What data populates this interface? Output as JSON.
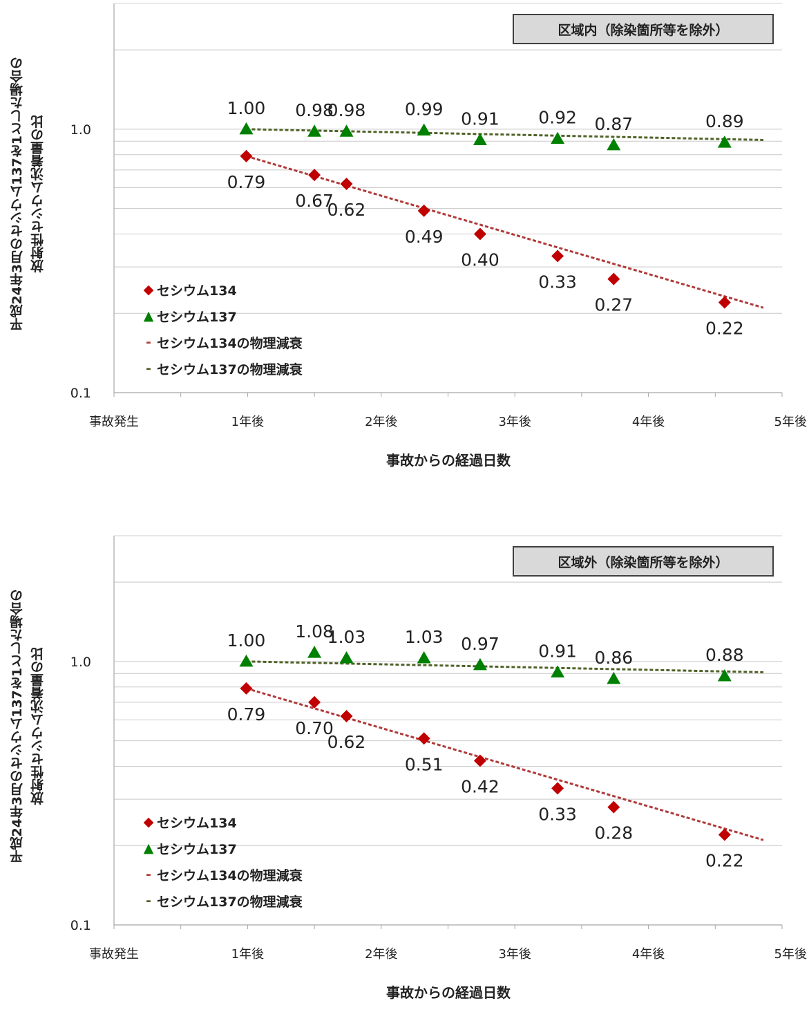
{
  "chart_data": [
    {
      "type": "scatter",
      "title": "区域内（除染箇所等を除外）",
      "xlabel": "事故からの経過日数",
      "ylabel_lines": [
        "平成24年3月のセシウム137を1とした場合の",
        "放射性セシウム沈着量の比"
      ],
      "x_tick_labels": [
        "事故発生",
        "1年後",
        "2年後",
        "3年後",
        "4年後",
        "5年後"
      ],
      "x_ticks": [
        0,
        1,
        2,
        3,
        4,
        5
      ],
      "xlim": [
        0,
        5
      ],
      "y_scale": "log",
      "ylim": [
        0.1,
        3.0
      ],
      "y_tick_labels": [
        "0.1",
        "1.0"
      ],
      "grid": true,
      "legend_placement": "lower-left",
      "series": [
        {
          "name": "セシウム134",
          "marker": "diamond",
          "color": "#c00000",
          "x": [
            0.99,
            1.5,
            1.74,
            2.32,
            2.74,
            3.32,
            3.74,
            4.57
          ],
          "values": [
            0.79,
            0.67,
            0.62,
            0.49,
            0.4,
            0.33,
            0.27,
            0.22
          ],
          "labels": [
            "0.79",
            "0.67",
            "0.62",
            "0.49",
            "0.40",
            "0.33",
            "0.27",
            "0.22"
          ]
        },
        {
          "name": "セシウム137",
          "marker": "triangle",
          "color": "#008000",
          "x": [
            0.99,
            1.5,
            1.74,
            2.32,
            2.74,
            3.32,
            3.74,
            4.57
          ],
          "values": [
            1.0,
            0.98,
            0.98,
            0.99,
            0.91,
            0.92,
            0.87,
            0.89
          ],
          "labels": [
            "1.00",
            "0.98",
            "0.98",
            "0.99",
            "0.91",
            "0.92",
            "0.87",
            "0.89"
          ]
        },
        {
          "name": "セシウム134の物理減衰",
          "line": "dashed",
          "color": "#b03a3a",
          "x": [
            0.99,
            4.86
          ],
          "values": [
            0.79,
            0.21
          ]
        },
        {
          "name": "セシウム137の物理減衰",
          "line": "dashed",
          "color": "#4f6228",
          "x": [
            0.99,
            4.86
          ],
          "values": [
            1.0,
            0.91
          ]
        }
      ]
    },
    {
      "type": "scatter",
      "title": "区域外（除染箇所等を除外）",
      "xlabel": "事故からの経過日数",
      "ylabel_lines": [
        "平成24年3月のセシウム137を1とした場合の",
        "放射性セシウム沈着量の比"
      ],
      "x_tick_labels": [
        "事故発生",
        "1年後",
        "2年後",
        "3年後",
        "4年後",
        "5年後"
      ],
      "x_ticks": [
        0,
        1,
        2,
        3,
        4,
        5
      ],
      "xlim": [
        0,
        5
      ],
      "y_scale": "log",
      "ylim": [
        0.1,
        3.0
      ],
      "y_tick_labels": [
        "0.1",
        "1.0"
      ],
      "grid": true,
      "legend_placement": "lower-left",
      "series": [
        {
          "name": "セシウム134",
          "marker": "diamond",
          "color": "#c00000",
          "x": [
            0.99,
            1.5,
            1.74,
            2.32,
            2.74,
            3.32,
            3.74,
            4.57
          ],
          "values": [
            0.79,
            0.7,
            0.62,
            0.51,
            0.42,
            0.33,
            0.28,
            0.22
          ],
          "labels": [
            "0.79",
            "0.70",
            "0.62",
            "0.51",
            "0.42",
            "0.33",
            "0.28",
            "0.22"
          ]
        },
        {
          "name": "セシウム137",
          "marker": "triangle",
          "color": "#008000",
          "x": [
            0.99,
            1.5,
            1.74,
            2.32,
            2.74,
            3.32,
            3.74,
            4.57
          ],
          "values": [
            1.0,
            1.08,
            1.03,
            1.03,
            0.97,
            0.91,
            0.86,
            0.88
          ],
          "labels": [
            "1.00",
            "1.08",
            "1.03",
            "1.03",
            "0.97",
            "0.91",
            "0.86",
            "0.88"
          ]
        },
        {
          "name": "セシウム134の物理減衰",
          "line": "dashed",
          "color": "#b03a3a",
          "x": [
            0.99,
            4.86
          ],
          "values": [
            0.79,
            0.21
          ]
        },
        {
          "name": "セシウム137の物理減衰",
          "line": "dashed",
          "color": "#4f6228",
          "x": [
            0.99,
            4.86
          ],
          "values": [
            1.0,
            0.91
          ]
        }
      ]
    }
  ]
}
